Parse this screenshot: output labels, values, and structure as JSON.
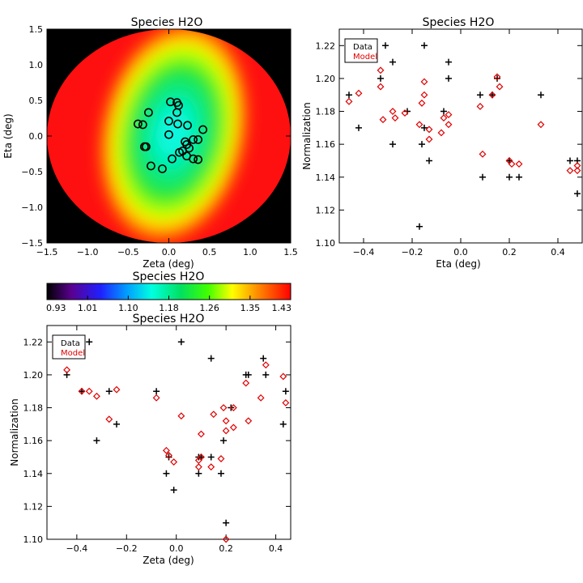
{
  "chart_data": [
    {
      "id": "map",
      "type": "heatmap",
      "title": "Species H2O",
      "xlabel": "Zeta (deg)",
      "ylabel": "Eta (deg)",
      "xlim": [
        -1.5,
        1.5
      ],
      "ylim": [
        -1.5,
        1.5
      ],
      "xticks": [
        "−1.5",
        "−1.0",
        "−0.5",
        "0.0",
        "0.5",
        "1.0",
        "1.5"
      ],
      "yticks": [
        "−1.5",
        "−1.0",
        "−0.5",
        "0.0",
        "0.5",
        "1.0",
        "1.5"
      ],
      "aperture_radius": 1.5,
      "background_color": "#000000",
      "marker_color": "#000000",
      "fibers": [
        [
          0.02,
          0.48
        ],
        [
          0.1,
          0.47
        ],
        [
          0.12,
          0.43
        ],
        [
          -0.25,
          0.33
        ],
        [
          0.1,
          0.33
        ],
        [
          -0.38,
          0.17
        ],
        [
          -0.32,
          0.16
        ],
        [
          0.0,
          0.21
        ],
        [
          0.11,
          0.17
        ],
        [
          0.23,
          0.15
        ],
        [
          0.42,
          0.09
        ],
        [
          0.0,
          0.02
        ],
        [
          0.3,
          -0.05
        ],
        [
          0.36,
          -0.05
        ],
        [
          0.2,
          -0.08
        ],
        [
          -0.3,
          -0.15
        ],
        [
          -0.28,
          -0.15
        ],
        [
          0.22,
          -0.12
        ],
        [
          0.25,
          -0.17
        ],
        [
          0.17,
          -0.21
        ],
        [
          0.13,
          -0.23
        ],
        [
          0.22,
          -0.28
        ],
        [
          0.04,
          -0.32
        ],
        [
          0.3,
          -0.32
        ],
        [
          0.36,
          -0.33
        ],
        [
          -0.22,
          -0.42
        ],
        [
          -0.08,
          -0.46
        ]
      ]
    },
    {
      "id": "colorbar",
      "type": "colorbar",
      "title": "Species H2O",
      "range": [
        0.93,
        1.43
      ],
      "ticks": [
        "0.93",
        "1.01",
        "1.10",
        "1.18",
        "1.26",
        "1.35",
        "1.43"
      ]
    },
    {
      "id": "eta_plot",
      "type": "scatter",
      "title": "Species H2O",
      "xlabel": "Eta (deg)",
      "ylabel": "Normalization",
      "xlim": [
        -0.5,
        0.5
      ],
      "ylim": [
        1.1,
        1.23
      ],
      "xticks": [
        "−0.4",
        "−0.2",
        "0.0",
        "0.2",
        "0.4"
      ],
      "yticks": [
        "1.10",
        "1.12",
        "1.14",
        "1.16",
        "1.18",
        "1.20",
        "1.22"
      ],
      "legend": {
        "position": "top-left",
        "labels": [
          "Data",
          "Model"
        ],
        "colors": [
          "#000000",
          "#e00000"
        ]
      },
      "series": [
        {
          "name": "Data",
          "marker": "plus",
          "color": "#000000",
          "points": [
            [
              -0.46,
              1.19
            ],
            [
              -0.42,
              1.17
            ],
            [
              -0.33,
              1.2
            ],
            [
              -0.31,
              1.22
            ],
            [
              -0.28,
              1.21
            ],
            [
              -0.28,
              1.16
            ],
            [
              -0.22,
              1.18
            ],
            [
              -0.17,
              1.11
            ],
            [
              -0.16,
              1.16
            ],
            [
              -0.15,
              1.17
            ],
            [
              -0.15,
              1.22
            ],
            [
              -0.13,
              1.15
            ],
            [
              -0.07,
              1.18
            ],
            [
              -0.05,
              1.21
            ],
            [
              -0.05,
              1.2
            ],
            [
              0.08,
              1.19
            ],
            [
              0.09,
              1.14
            ],
            [
              0.13,
              1.19
            ],
            [
              0.15,
              1.2
            ],
            [
              0.2,
              1.15
            ],
            [
              0.2,
              1.14
            ],
            [
              0.24,
              1.14
            ],
            [
              0.33,
              1.19
            ],
            [
              0.45,
              1.15
            ],
            [
              0.48,
              1.15
            ],
            [
              0.48,
              1.13
            ]
          ]
        },
        {
          "name": "Model",
          "marker": "diamond",
          "color": "#e00000",
          "points": [
            [
              -0.46,
              1.186
            ],
            [
              -0.42,
              1.191
            ],
            [
              -0.33,
              1.205
            ],
            [
              -0.33,
              1.195
            ],
            [
              -0.32,
              1.175
            ],
            [
              -0.28,
              1.18
            ],
            [
              -0.27,
              1.176
            ],
            [
              -0.23,
              1.179
            ],
            [
              -0.17,
              1.172
            ],
            [
              -0.16,
              1.185
            ],
            [
              -0.15,
              1.19
            ],
            [
              -0.15,
              1.198
            ],
            [
              -0.13,
              1.163
            ],
            [
              -0.13,
              1.169
            ],
            [
              -0.08,
              1.167
            ],
            [
              -0.05,
              1.172
            ],
            [
              -0.05,
              1.178
            ],
            [
              -0.07,
              1.176
            ],
            [
              0.08,
              1.183
            ],
            [
              0.09,
              1.154
            ],
            [
              0.13,
              1.19
            ],
            [
              0.15,
              1.201
            ],
            [
              0.16,
              1.195
            ],
            [
              0.2,
              1.15
            ],
            [
              0.21,
              1.148
            ],
            [
              0.24,
              1.148
            ],
            [
              0.33,
              1.172
            ],
            [
              0.45,
              1.144
            ],
            [
              0.48,
              1.147
            ],
            [
              0.48,
              1.144
            ]
          ]
        }
      ]
    },
    {
      "id": "zeta_plot",
      "type": "scatter",
      "title": "Species H2O",
      "xlabel": "Zeta (deg)",
      "ylabel": "Normalization",
      "xlim": [
        -0.52,
        0.46
      ],
      "ylim": [
        1.1,
        1.23
      ],
      "xticks": [
        "−0.4",
        "−0.2",
        "0.0",
        "0.2",
        "0.4"
      ],
      "yticks": [
        "1.10",
        "1.12",
        "1.14",
        "1.16",
        "1.18",
        "1.20",
        "1.22"
      ],
      "legend": {
        "position": "top-left",
        "labels": [
          "Data",
          "Model"
        ],
        "colors": [
          "#000000",
          "#e00000"
        ]
      },
      "series": [
        {
          "name": "Data",
          "marker": "plus",
          "color": "#000000",
          "points": [
            [
              -0.44,
              1.2
            ],
            [
              -0.38,
              1.19
            ],
            [
              -0.35,
              1.22
            ],
            [
              -0.32,
              1.16
            ],
            [
              -0.27,
              1.19
            ],
            [
              -0.24,
              1.17
            ],
            [
              -0.08,
              1.19
            ],
            [
              -0.04,
              1.14
            ],
            [
              -0.03,
              1.15
            ],
            [
              -0.01,
              1.13
            ],
            [
              0.02,
              1.22
            ],
            [
              0.09,
              1.15
            ],
            [
              0.09,
              1.14
            ],
            [
              0.1,
              1.15
            ],
            [
              0.14,
              1.15
            ],
            [
              0.14,
              1.21
            ],
            [
              0.18,
              1.14
            ],
            [
              0.19,
              1.16
            ],
            [
              0.2,
              1.11
            ],
            [
              0.22,
              1.18
            ],
            [
              0.28,
              1.2
            ],
            [
              0.29,
              1.2
            ],
            [
              0.35,
              1.21
            ],
            [
              0.36,
              1.2
            ],
            [
              0.43,
              1.17
            ],
            [
              0.44,
              1.19
            ]
          ]
        },
        {
          "name": "Model",
          "marker": "diamond",
          "color": "#e00000",
          "points": [
            [
              -0.44,
              1.203
            ],
            [
              -0.38,
              1.19
            ],
            [
              -0.35,
              1.19
            ],
            [
              -0.32,
              1.187
            ],
            [
              -0.27,
              1.173
            ],
            [
              -0.24,
              1.191
            ],
            [
              -0.08,
              1.186
            ],
            [
              -0.04,
              1.154
            ],
            [
              -0.03,
              1.151
            ],
            [
              -0.01,
              1.147
            ],
            [
              0.02,
              1.175
            ],
            [
              0.09,
              1.144
            ],
            [
              0.09,
              1.148
            ],
            [
              0.1,
              1.15
            ],
            [
              0.1,
              1.164
            ],
            [
              0.14,
              1.144
            ],
            [
              0.15,
              1.176
            ],
            [
              0.18,
              1.149
            ],
            [
              0.19,
              1.18
            ],
            [
              0.2,
              1.172
            ],
            [
              0.2,
              1.166
            ],
            [
              0.2,
              1.1
            ],
            [
              0.23,
              1.168
            ],
            [
              0.23,
              1.18
            ],
            [
              0.28,
              1.195
            ],
            [
              0.29,
              1.172
            ],
            [
              0.34,
              1.186
            ],
            [
              0.36,
              1.206
            ],
            [
              0.43,
              1.199
            ],
            [
              0.44,
              1.183
            ]
          ]
        }
      ]
    }
  ]
}
